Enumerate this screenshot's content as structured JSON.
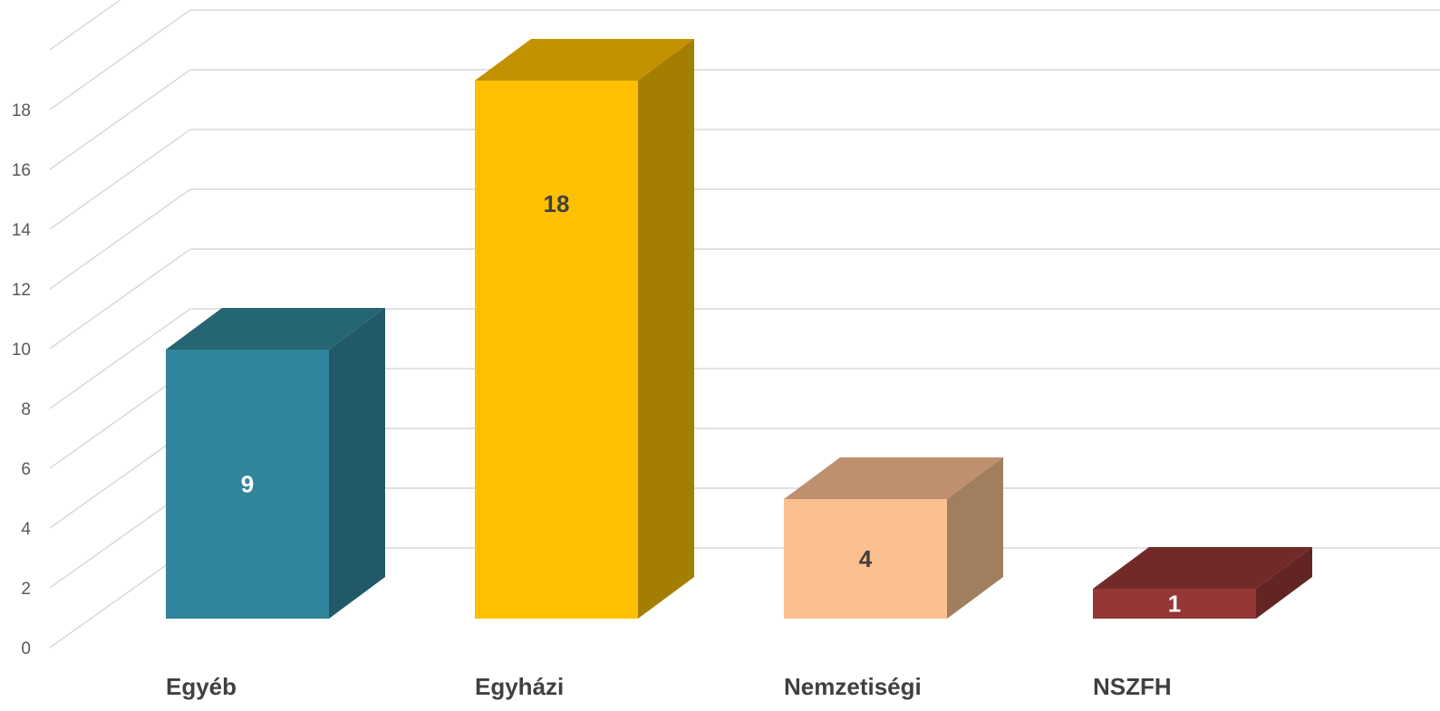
{
  "chart_data": {
    "type": "bar",
    "categories": [
      "Egyéb",
      "Egyházi",
      "Nemzetiségi",
      "NSZFH"
    ],
    "values": [
      9,
      18,
      4,
      1
    ],
    "colors": {
      "front": [
        "#31859C",
        "#FFC000",
        "#FAC090",
        "#953735"
      ],
      "top": [
        "#266573",
        "#C29200",
        "#BE906E",
        "#722A28"
      ],
      "side": [
        "#215968",
        "#A37E00",
        "#A07E5E",
        "#632523"
      ],
      "label": [
        "#FFFFFF",
        "#404040",
        "#404040",
        "#FFFFFF"
      ]
    },
    "yticks": [
      0,
      2,
      4,
      6,
      8,
      10,
      12,
      14,
      16,
      18
    ],
    "ylim": [
      0,
      20
    ],
    "grid": true,
    "title": "",
    "xlabel": "",
    "ylabel": ""
  }
}
